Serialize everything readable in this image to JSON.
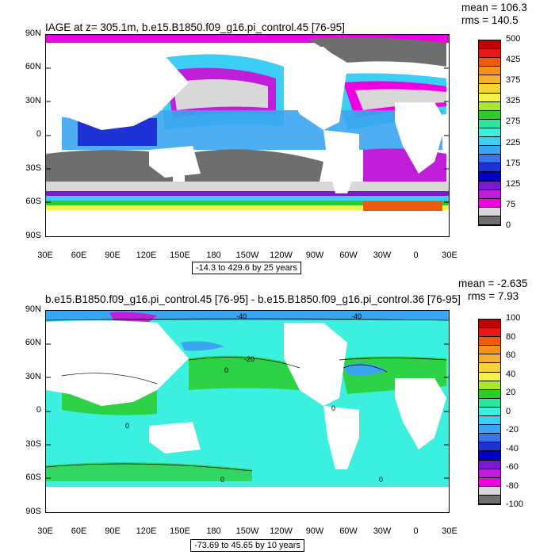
{
  "panels": [
    {
      "title": "IAGE at z= 305.1m, b.e15.B1850.f09_g16.pi_control.45 [76-95]",
      "mean": "mean = 106.3",
      "rms": "rms = 140.5",
      "range": "-14.3 to 429.6 by 25 years",
      "lat_labels": [
        "90N",
        "60N",
        "30N",
        "0",
        "30S",
        "60S",
        "90S"
      ],
      "lon_labels": [
        "30E",
        "60E",
        "90E",
        "120E",
        "150E",
        "180",
        "150W",
        "120W",
        "90W",
        "60W",
        "30W",
        "0",
        "30E"
      ],
      "colorbar": {
        "labels": [
          "500",
          "425",
          "375",
          "325",
          "275",
          "225",
          "175",
          "125",
          "75",
          "0"
        ],
        "colors": [
          "#c00000",
          "#e81818",
          "#f05a10",
          "#f5901a",
          "#f5b030",
          "#f5d535",
          "#f5f04a",
          "#a8e830",
          "#2ccc2c",
          "#2ce6a0",
          "#3cf0e0",
          "#3ccff5",
          "#3aa5f0",
          "#3775e6",
          "#1d33d6",
          "#0000c8",
          "#7a18d2",
          "#c01ed8",
          "#f000e0",
          "#d8d8d8",
          "#6e6e6e"
        ]
      },
      "contour_labels": []
    },
    {
      "title": "b.e15.B1850.f09_g16.pi_control.45 [76-95] - b.e15.B1850.f09_g16.pi_control.36 [76-95]",
      "mean": "mean = -2.635",
      "rms": "rms = 7.93",
      "range": "-73.69 to 45.65 by 10 years",
      "lat_labels": [
        "90N",
        "60N",
        "30N",
        "0",
        "30S",
        "60S",
        "90S"
      ],
      "lon_labels": [
        "30E",
        "60E",
        "90E",
        "120E",
        "150E",
        "180",
        "150W",
        "120W",
        "90W",
        "60W",
        "30W",
        "0",
        "30E"
      ],
      "colorbar": {
        "labels": [
          "100",
          "80",
          "60",
          "40",
          "20",
          "0",
          "-20",
          "-40",
          "-60",
          "-80",
          "-100"
        ],
        "colors": [
          "#c00000",
          "#e81818",
          "#f05a10",
          "#f5901a",
          "#f5b030",
          "#f5d535",
          "#f5f04a",
          "#a8e830",
          "#2ccc2c",
          "#2ce6a0",
          "#3cf0e0",
          "#3ccff5",
          "#3aa5f0",
          "#3775e6",
          "#1d33d6",
          "#0000c8",
          "#7a18d2",
          "#c01ed8",
          "#f000e0",
          "#d8d8d8",
          "#6e6e6e"
        ]
      },
      "contour_labels": [
        "-40",
        "-40",
        "-20",
        "0",
        "0",
        "0",
        "0",
        "0"
      ]
    }
  ]
}
